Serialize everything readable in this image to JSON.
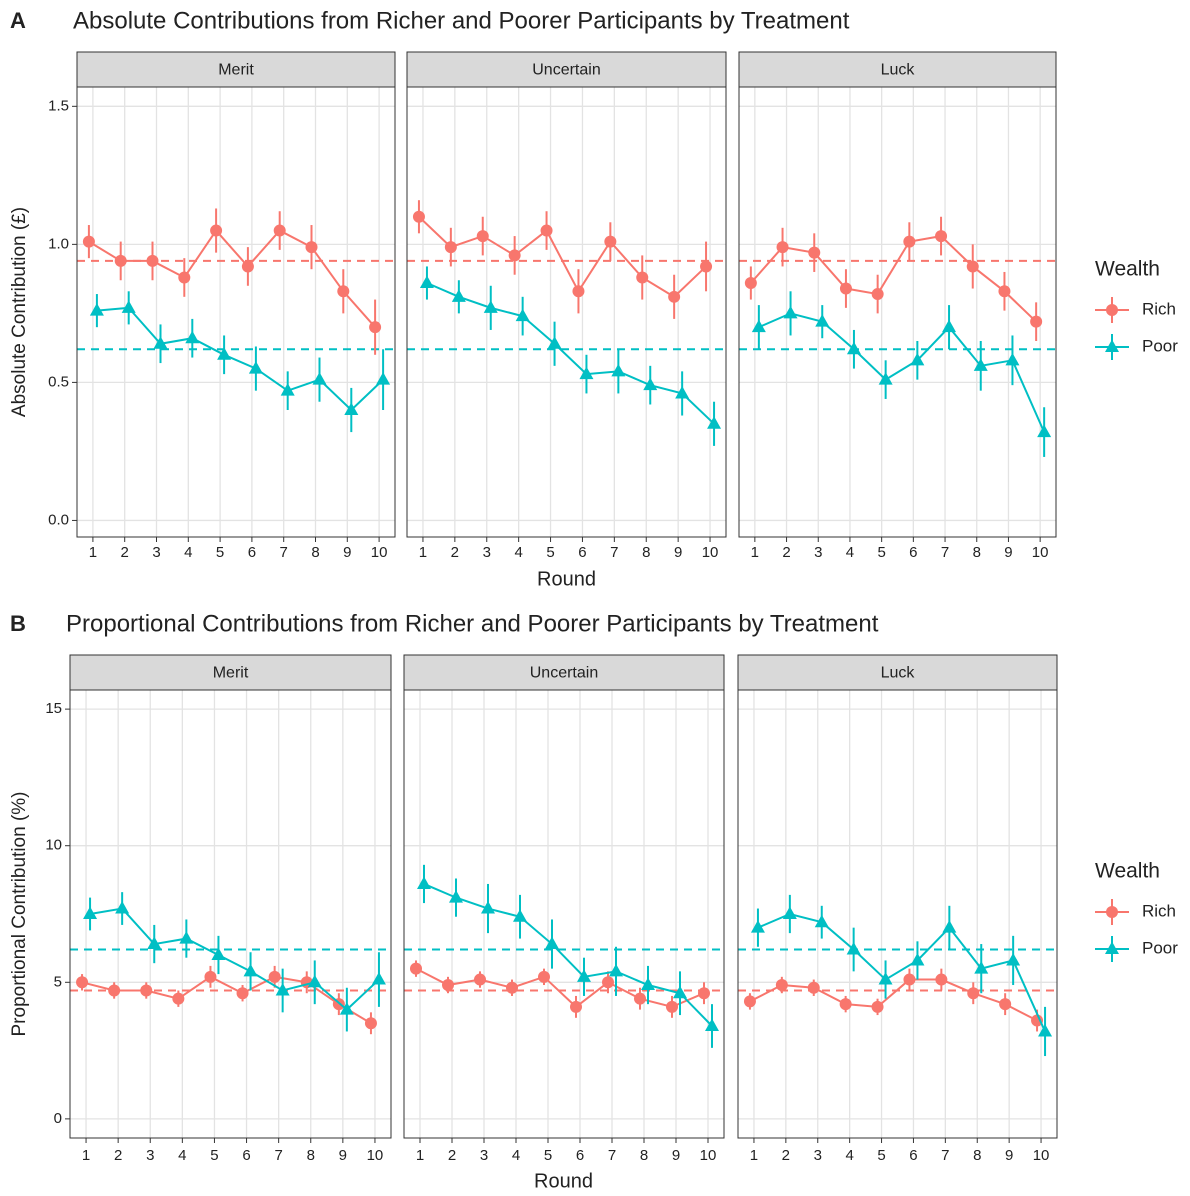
{
  "chart_data": [
    {
      "type": "line",
      "label": "A",
      "title": "Absolute Contributions from Richer and Poorer Participants by Treatment",
      "xlabel": "Round",
      "ylabel": "Absolute Contribution (£)",
      "legend_title": "Wealth",
      "x": [
        1,
        2,
        3,
        4,
        5,
        6,
        7,
        8,
        9,
        10
      ],
      "xlim": [
        0.5,
        10.5
      ],
      "xticks": [
        1,
        2,
        3,
        4,
        5,
        6,
        7,
        8,
        9,
        10
      ],
      "ylim": [
        -0.06,
        1.57
      ],
      "yticks": [
        {
          "value": 0,
          "label": "0.0"
        },
        0.5,
        {
          "value": 1,
          "label": "1.0"
        },
        1.5
      ],
      "grid": true,
      "legend": "right",
      "series": [
        {
          "name": "Rich",
          "color": "#F8766D",
          "mean": 0.94
        },
        {
          "name": "Poor",
          "color": "#00BFC4",
          "mean": 0.62
        }
      ],
      "facets": [
        {
          "name": "Merit",
          "values": [
            [
              1.01,
              0.94,
              0.94,
              0.88,
              1.05,
              0.92,
              1.05,
              0.99,
              0.83,
              0.7
            ],
            [
              0.76,
              0.77,
              0.64,
              0.66,
              0.6,
              0.55,
              0.47,
              0.51,
              0.4,
              0.51
            ]
          ],
          "errors": [
            [
              0.06,
              0.07,
              0.07,
              0.07,
              0.08,
              0.07,
              0.07,
              0.08,
              0.08,
              0.1
            ],
            [
              0.06,
              0.06,
              0.07,
              0.07,
              0.07,
              0.08,
              0.07,
              0.08,
              0.08,
              0.11
            ]
          ]
        },
        {
          "name": "Uncertain",
          "values": [
            [
              1.1,
              0.99,
              1.03,
              0.96,
              1.05,
              0.83,
              1.01,
              0.88,
              0.81,
              0.92
            ],
            [
              0.86,
              0.81,
              0.77,
              0.74,
              0.64,
              0.53,
              0.54,
              0.49,
              0.46,
              0.35
            ]
          ],
          "errors": [
            [
              0.06,
              0.07,
              0.07,
              0.07,
              0.07,
              0.08,
              0.07,
              0.08,
              0.08,
              0.09
            ],
            [
              0.06,
              0.06,
              0.08,
              0.07,
              0.08,
              0.07,
              0.08,
              0.07,
              0.08,
              0.08
            ]
          ]
        },
        {
          "name": "Luck",
          "values": [
            [
              0.86,
              0.99,
              0.97,
              0.84,
              0.82,
              1.01,
              1.03,
              0.92,
              0.83,
              0.72
            ],
            [
              0.7,
              0.75,
              0.72,
              0.62,
              0.51,
              0.58,
              0.7,
              0.56,
              0.58,
              0.32
            ]
          ],
          "errors": [
            [
              0.06,
              0.07,
              0.07,
              0.07,
              0.07,
              0.07,
              0.07,
              0.08,
              0.07,
              0.07
            ],
            [
              0.08,
              0.08,
              0.06,
              0.07,
              0.07,
              0.07,
              0.08,
              0.09,
              0.09,
              0.09
            ]
          ]
        }
      ]
    },
    {
      "type": "line",
      "label": "B",
      "title": "Proportional Contributions from Richer and Poorer Participants by Treatment",
      "xlabel": "Round",
      "ylabel": "Proportional Contribution (%)",
      "legend_title": "Wealth",
      "x": [
        1,
        2,
        3,
        4,
        5,
        6,
        7,
        8,
        9,
        10
      ],
      "xlim": [
        0.5,
        10.5
      ],
      "xticks": [
        1,
        2,
        3,
        4,
        5,
        6,
        7,
        8,
        9,
        10
      ],
      "ylim": [
        -0.7,
        15.7
      ],
      "yticks": [
        0,
        5,
        10,
        15
      ],
      "grid": true,
      "legend": "right",
      "series": [
        {
          "name": "Rich",
          "color": "#F8766D",
          "mean": 4.7
        },
        {
          "name": "Poor",
          "color": "#00BFC4",
          "mean": 6.2
        }
      ],
      "facets": [
        {
          "name": "Merit",
          "values": [
            [
              5.0,
              4.7,
              4.7,
              4.4,
              5.2,
              4.6,
              5.2,
              5.0,
              4.2,
              3.5
            ],
            [
              7.5,
              7.7,
              6.4,
              6.6,
              6.0,
              5.4,
              4.7,
              5.0,
              4.0,
              5.1
            ]
          ],
          "errors": [
            [
              0.3,
              0.3,
              0.3,
              0.3,
              0.4,
              0.3,
              0.4,
              0.4,
              0.4,
              0.4
            ],
            [
              0.6,
              0.6,
              0.7,
              0.7,
              0.7,
              0.7,
              0.8,
              0.8,
              0.8,
              1.0
            ]
          ]
        },
        {
          "name": "Uncertain",
          "values": [
            [
              5.5,
              4.9,
              5.1,
              4.8,
              5.2,
              4.1,
              5.0,
              4.4,
              4.1,
              4.6
            ],
            [
              8.6,
              8.1,
              7.7,
              7.4,
              6.4,
              5.2,
              5.4,
              4.9,
              4.6,
              3.4
            ]
          ],
          "errors": [
            [
              0.3,
              0.3,
              0.3,
              0.3,
              0.3,
              0.4,
              0.4,
              0.4,
              0.4,
              0.4
            ],
            [
              0.7,
              0.7,
              0.9,
              0.8,
              0.9,
              0.7,
              0.9,
              0.7,
              0.8,
              0.8
            ]
          ]
        },
        {
          "name": "Luck",
          "values": [
            [
              4.3,
              4.9,
              4.8,
              4.2,
              4.1,
              5.1,
              5.1,
              4.6,
              4.2,
              3.6
            ],
            [
              7.0,
              7.5,
              7.2,
              6.2,
              5.1,
              5.8,
              7.0,
              5.5,
              5.8,
              3.2
            ]
          ],
          "errors": [
            [
              0.3,
              0.3,
              0.3,
              0.3,
              0.3,
              0.4,
              0.4,
              0.4,
              0.4,
              0.4
            ],
            [
              0.7,
              0.7,
              0.6,
              0.8,
              0.7,
              0.7,
              0.8,
              0.9,
              0.9,
              0.9
            ]
          ]
        }
      ]
    }
  ]
}
